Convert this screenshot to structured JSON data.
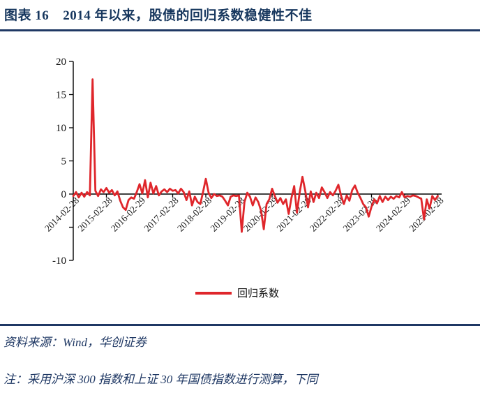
{
  "page": {
    "figure_label": "图表 16",
    "figure_title": "2014 年以来，股债的回归系数稳健性不佳",
    "source": "资料来源：Wind，华创证券",
    "note": "注：采用沪深 300 指数和上证 30 年国债指数进行测算，下同"
  },
  "colors": {
    "title_navy": "#17375E",
    "rule_navy": "#1F3864",
    "series_red": "#DF262B",
    "axis_black": "#1a1a1a"
  },
  "chart_data": {
    "type": "line",
    "title": "",
    "xlabel": "",
    "ylabel": "",
    "grid": false,
    "legend_position": "bottom",
    "ylim": [
      -10,
      20
    ],
    "yticks_all": [
      20,
      15,
      10,
      5,
      0,
      -5,
      -10
    ],
    "yticks_labeled": [
      20,
      15,
      10,
      5,
      0,
      -10
    ],
    "x_start_month": "2014-02",
    "x_end_month": "2025-02",
    "x_tick_labels": [
      "2014-02-28",
      "2015-02-28",
      "2016-02-29",
      "2017-02-28",
      "2018-02-28",
      "2019-02-28",
      "2020-02-29",
      "2021-02-28",
      "2022-02-28",
      "2023-02-28",
      "2024-02-29",
      "2025-02-28"
    ],
    "series": [
      {
        "name": "回归系数",
        "color": "#DF262B",
        "monthly_values": [
          -0.3,
          0.3,
          -0.5,
          0.2,
          -0.4,
          0.3,
          -0.2,
          17.3,
          0.5,
          -0.3,
          0.7,
          0.3,
          0.9,
          0.2,
          0.6,
          -0.2,
          0.4,
          -1.0,
          -2.0,
          -2.4,
          -0.9,
          -0.5,
          -0.7,
          0.3,
          1.5,
          0.1,
          2.1,
          -0.5,
          1.7,
          0.1,
          1.2,
          -0.2,
          0.4,
          0.7,
          0.3,
          0.8,
          0.5,
          0.6,
          0.1,
          0.8,
          0.3,
          -0.9,
          0.4,
          -1.7,
          -0.4,
          -1.2,
          -1.5,
          0.3,
          2.3,
          0.2,
          -0.6,
          0.0,
          -0.3,
          -0.2,
          -0.4,
          -1.0,
          -1.7,
          -0.4,
          -0.2,
          -0.3,
          -0.2,
          -5.7,
          -1.2,
          0.2,
          -0.4,
          -1.7,
          -0.5,
          -1.2,
          -2.5,
          -5.3,
          -1.5,
          -0.8,
          0.8,
          -0.3,
          -1.3,
          -0.6,
          -1.5,
          -0.8,
          -3.0,
          -0.6,
          1.2,
          -2.8,
          0.3,
          2.6,
          0.5,
          -2.0,
          0.4,
          -1.2,
          0.2,
          -0.6,
          1.0,
          0.3,
          -0.6,
          0.3,
          -0.2,
          0.5,
          1.4,
          -0.3,
          -1.5,
          -0.2,
          -1.0,
          0.6,
          1.3,
          0.2,
          -0.6,
          -1.5,
          -2.0,
          -3.4,
          -1.9,
          -0.8,
          -1.4,
          -0.3,
          -1.2,
          -0.4,
          -0.9,
          -0.4,
          -0.7,
          -0.3,
          -0.5,
          0.3,
          -0.5,
          -0.3,
          -0.4,
          -0.2,
          -0.3,
          -0.5,
          -0.7,
          -3.8,
          -0.8,
          -2.2,
          -0.3,
          -0.9,
          -0.3
        ]
      }
    ]
  }
}
